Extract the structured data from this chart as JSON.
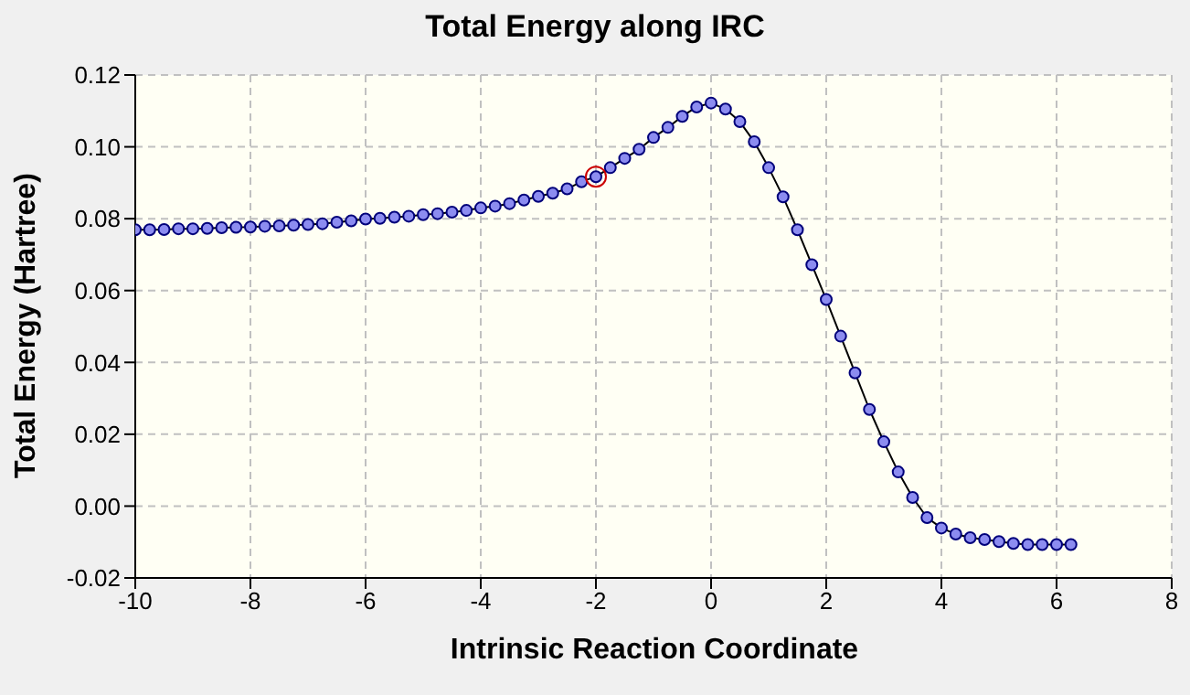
{
  "chart_data": {
    "type": "line",
    "title": "Total Energy along IRC",
    "xlabel": "Intrinsic Reaction Coordinate",
    "ylabel": "Total Energy (Hartree)",
    "xlim": [
      -10,
      8
    ],
    "xticks": [
      -10,
      -8,
      -6,
      -4,
      -2,
      0,
      2,
      4,
      6,
      8
    ],
    "ylim": [
      -0.02,
      0.12
    ],
    "yticks": [
      {
        "value": -0.02,
        "label": "-0.02"
      },
      {
        "value": 0,
        "label": "0.00"
      },
      {
        "value": 0.02,
        "label": "0.02"
      },
      {
        "value": 0.04,
        "label": "0.04"
      },
      {
        "value": 0.06,
        "label": "0.06"
      },
      {
        "value": 0.08,
        "label": "0.08"
      },
      {
        "value": 0.1,
        "label": "0.10"
      },
      {
        "value": 0.12,
        "label": "0.12"
      }
    ],
    "grid": true,
    "marker": "circle",
    "line_style": "solid",
    "series": [
      {
        "color": "#000000",
        "x": [
          -10,
          -9.75,
          -9.5,
          -9.25,
          -9,
          -8.75,
          -8.5,
          -8.25,
          -8,
          -7.75,
          -7.5,
          -7.25,
          -7,
          -6.75,
          -6.5,
          -6.25,
          -6,
          -5.75,
          -5.5,
          -5.25,
          -5,
          -4.75,
          -4.5,
          -4.25,
          -4,
          -3.75,
          -3.5,
          -3.25,
          -3,
          -2.75,
          -2.5,
          -2.25,
          -2,
          -1.75,
          -1.5,
          -1.25,
          -1,
          -0.75,
          -0.5,
          -0.25,
          0,
          0.25,
          0.5,
          0.75,
          1,
          1.25,
          1.5,
          1.75,
          2,
          2.25,
          2.5,
          2.75,
          3,
          3.25,
          3.5,
          3.75,
          4,
          4.25,
          4.5,
          4.75,
          5,
          5.25,
          5.5,
          5.75,
          6,
          6.25
        ],
        "values": [
          0.0769,
          0.0769,
          0.077,
          0.0772,
          0.0772,
          0.0773,
          0.0775,
          0.0776,
          0.0777,
          0.0779,
          0.078,
          0.0782,
          0.0784,
          0.0786,
          0.079,
          0.0794,
          0.0799,
          0.0801,
          0.0804,
          0.0807,
          0.0811,
          0.0814,
          0.0818,
          0.0823,
          0.083,
          0.0835,
          0.0842,
          0.0852,
          0.0862,
          0.0871,
          0.0883,
          0.0903,
          0.0917,
          0.0942,
          0.0968,
          0.0993,
          0.1026,
          0.1054,
          0.1085,
          0.1111,
          0.1122,
          0.1105,
          0.107,
          0.1014,
          0.0942,
          0.0861,
          0.0769,
          0.0672,
          0.0575,
          0.0473,
          0.0371,
          0.0269,
          0.0179,
          0.0095,
          0.0024,
          -0.0032,
          -0.0061,
          -0.0078,
          -0.0088,
          -0.0093,
          -0.0099,
          -0.0104,
          -0.0107,
          -0.0107,
          -0.0107,
          -0.0107
        ]
      },
      {
        "type": "scatter",
        "color": "#cc0000",
        "marker": "circle",
        "x": [
          -2
        ],
        "values": [
          0.0917
        ]
      }
    ]
  }
}
